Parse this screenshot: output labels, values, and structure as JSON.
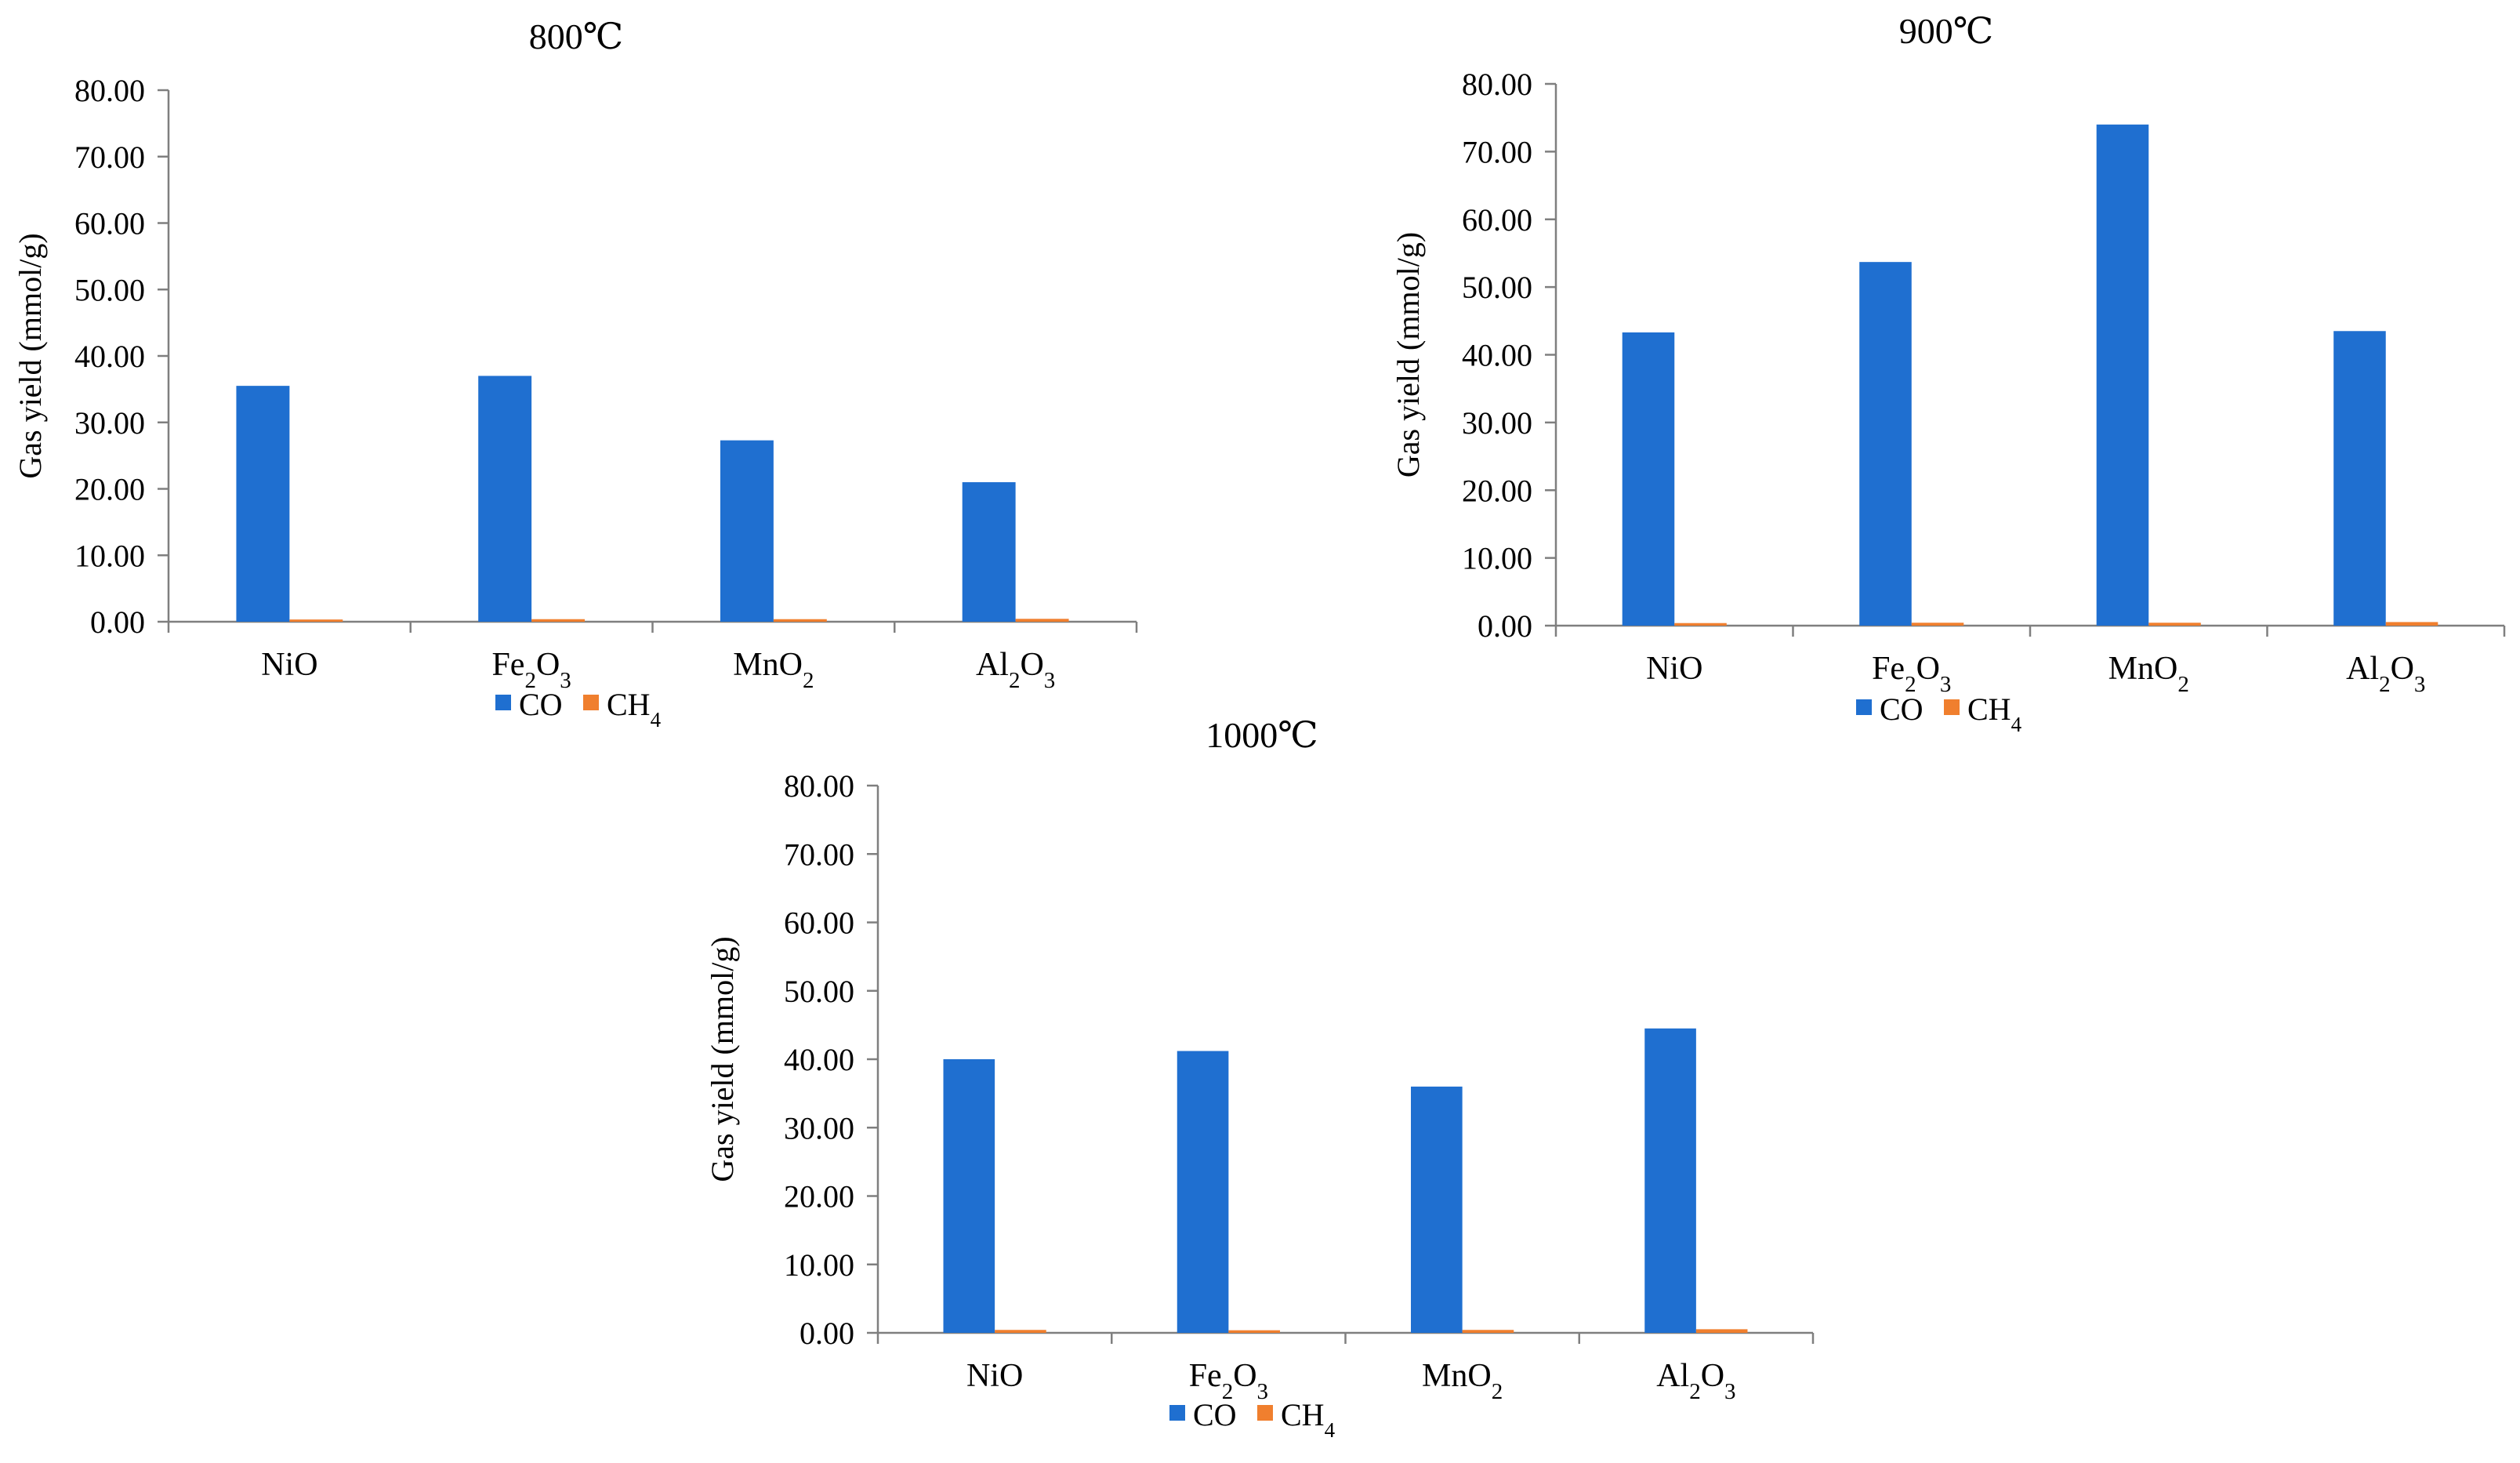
{
  "colors": {
    "co": "#1f6fd0",
    "ch4": "#f07f2e",
    "axis": "#7f7f7f"
  },
  "chart_data": [
    {
      "type": "bar",
      "title": "800℃",
      "ylabel": "Gas yield (mmol/g)",
      "xlabel": "",
      "ylim": [
        0,
        80
      ],
      "ytick_step": 10,
      "ytick_labels": [
        "0.00",
        "10.00",
        "20.00",
        "30.00",
        "40.00",
        "50.00",
        "60.00",
        "70.00",
        "80.00"
      ],
      "categories": [
        {
          "base": "NiO",
          "sub": "",
          "rest": ""
        },
        {
          "base": "Fe",
          "sub": "2",
          "rest": "O",
          "sub2": "3"
        },
        {
          "base": "Mn",
          "sub": "",
          "rest": "O",
          "sub2": "2"
        },
        {
          "base": "Al",
          "sub": "2",
          "rest": "O",
          "sub2": "3"
        }
      ],
      "series": [
        {
          "name": "CO",
          "values": [
            35.5,
            37.0,
            27.3,
            21.0
          ]
        },
        {
          "name": "CH4",
          "values": [
            0.1,
            0.15,
            0.15,
            0.2
          ]
        }
      ],
      "legend": [
        {
          "base": "CO",
          "sub": ""
        },
        {
          "base": "CH",
          "sub": "4"
        }
      ]
    },
    {
      "type": "bar",
      "title": "900℃",
      "ylabel": "Gas yield (mmol/g)",
      "xlabel": "",
      "ylim": [
        0,
        80
      ],
      "ytick_step": 10,
      "ytick_labels": [
        "0.00",
        "10.00",
        "20.00",
        "30.00",
        "40.00",
        "50.00",
        "60.00",
        "70.00",
        "80.00"
      ],
      "categories": [
        {
          "base": "NiO",
          "sub": "",
          "rest": ""
        },
        {
          "base": "Fe",
          "sub": "2",
          "rest": "O",
          "sub2": "3"
        },
        {
          "base": "Mn",
          "sub": "",
          "rest": "O",
          "sub2": "2"
        },
        {
          "base": "Al",
          "sub": "2",
          "rest": "O",
          "sub2": "3"
        }
      ],
      "series": [
        {
          "name": "CO",
          "values": [
            43.3,
            53.7,
            74.0,
            43.5
          ]
        },
        {
          "name": "CH4",
          "values": [
            0.15,
            0.2,
            0.2,
            0.3
          ]
        }
      ],
      "legend": [
        {
          "base": "CO",
          "sub": ""
        },
        {
          "base": "CH",
          "sub": "4"
        }
      ]
    },
    {
      "type": "bar",
      "title": "1000℃",
      "ylabel": "Gas yield (mmol/g)",
      "xlabel": "",
      "ylim": [
        0,
        80
      ],
      "ytick_step": 10,
      "ytick_labels": [
        "0.00",
        "10.00",
        "20.00",
        "30.00",
        "40.00",
        "50.00",
        "60.00",
        "70.00",
        "80.00"
      ],
      "categories": [
        {
          "base": "NiO",
          "sub": "",
          "rest": ""
        },
        {
          "base": "Fe",
          "sub": "2",
          "rest": "O",
          "sub2": "3"
        },
        {
          "base": "Mn",
          "sub": "",
          "rest": "O",
          "sub2": "2"
        },
        {
          "base": "Al",
          "sub": "2",
          "rest": "O",
          "sub2": "3"
        }
      ],
      "series": [
        {
          "name": "CO",
          "values": [
            40.0,
            41.2,
            36.0,
            44.5
          ]
        },
        {
          "name": "CH4",
          "values": [
            0.2,
            0.15,
            0.2,
            0.3
          ]
        }
      ],
      "legend": [
        {
          "base": "CO",
          "sub": ""
        },
        {
          "base": "CH",
          "sub": "4"
        }
      ]
    }
  ]
}
